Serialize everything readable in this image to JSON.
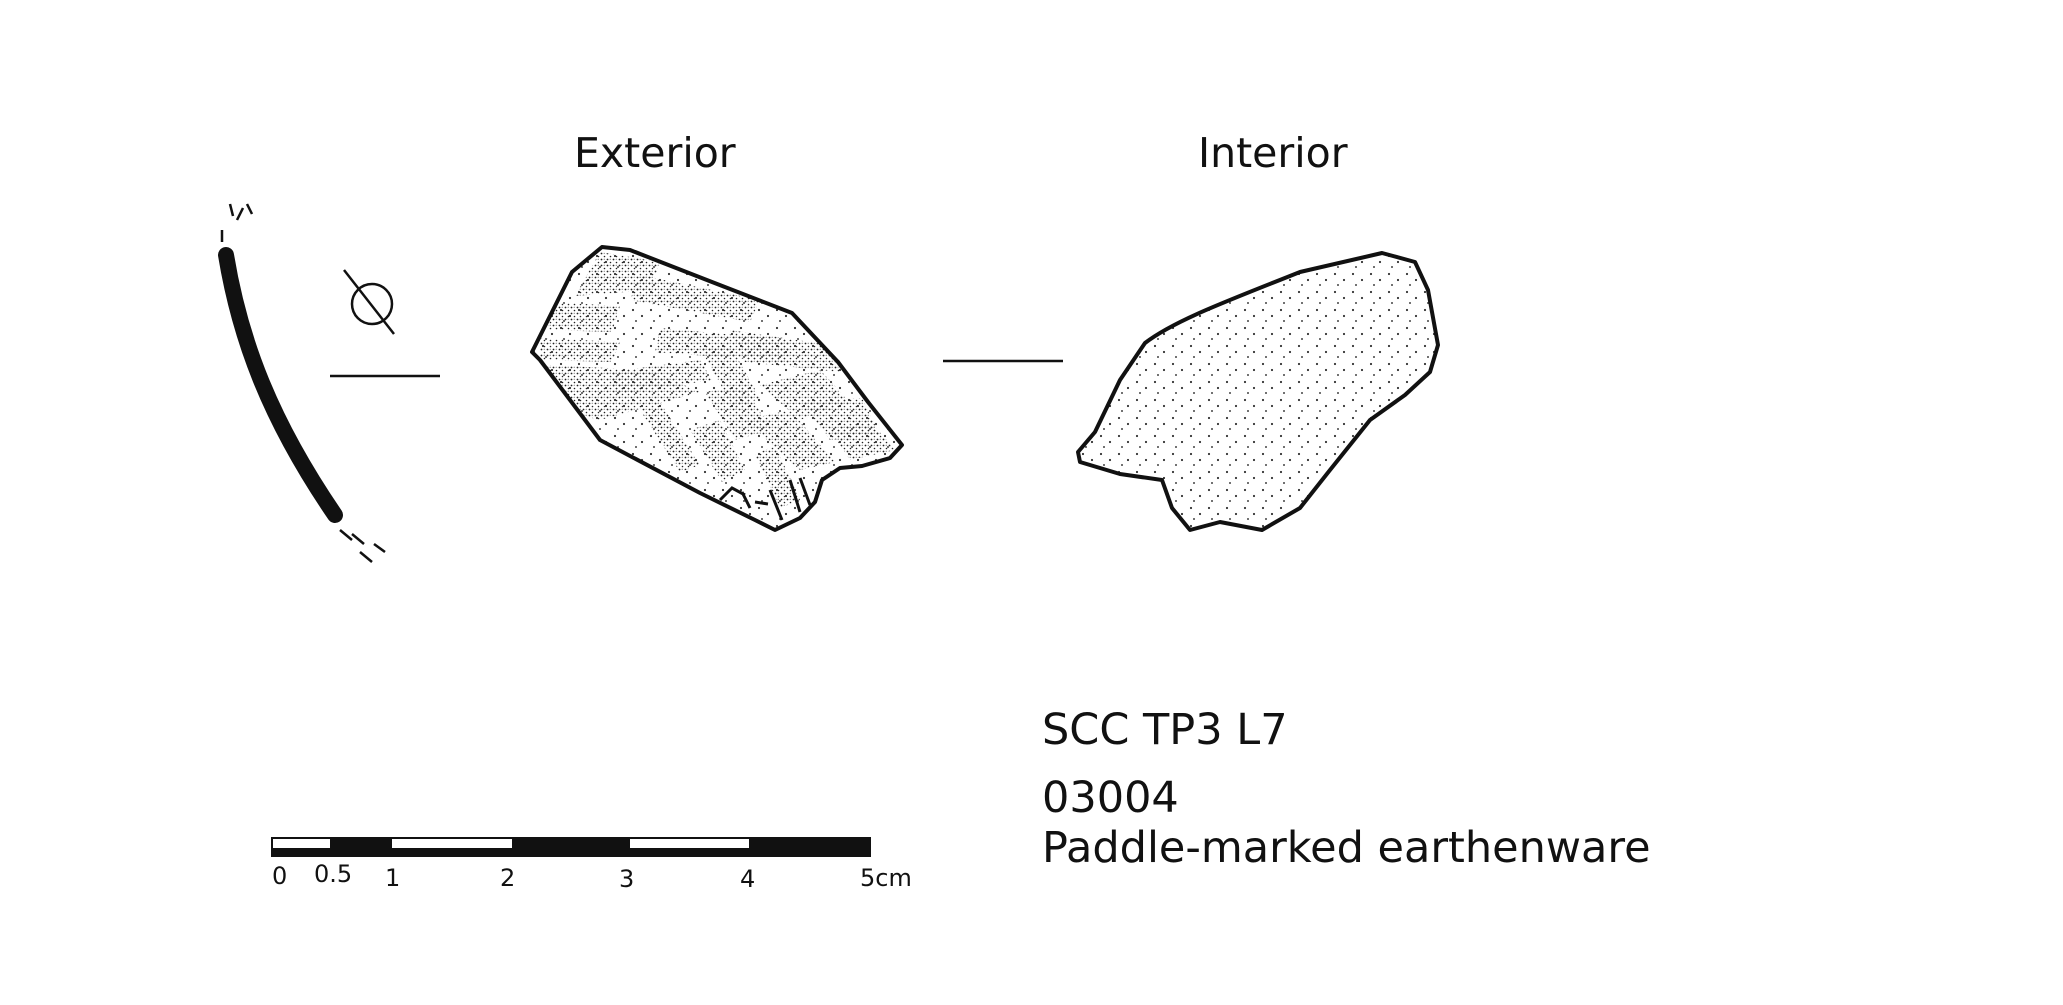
{
  "labels": {
    "exterior": "Exterior",
    "interior": "Interior"
  },
  "sample": {
    "site": "SCC TP3 L7",
    "number": "03004",
    "description": "Paddle-marked earthenware"
  },
  "scale_bar": {
    "ticks": [
      "0",
      "0.5",
      "1",
      "2",
      "3",
      "4",
      "5cm"
    ]
  },
  "symbols": {
    "diameter": "diameter-symbol"
  },
  "colors": {
    "ink": "#111111",
    "background": "#ffffff"
  }
}
